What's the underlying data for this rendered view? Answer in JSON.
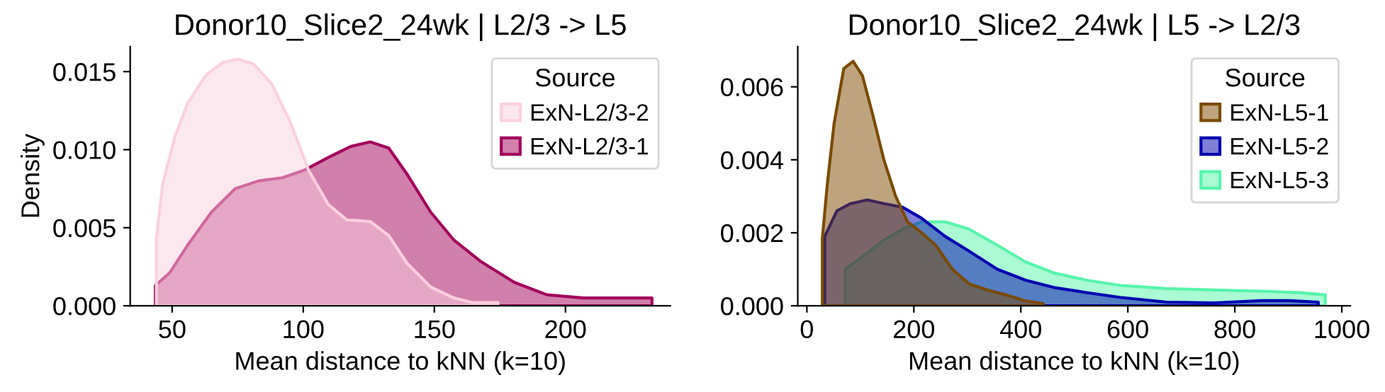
{
  "chart_data": [
    {
      "type": "area",
      "title": "Donor10_Slice2_24wk | L2/3 -> L5",
      "xlabel": "Mean distance to kNN (k=10)",
      "ylabel": "Density",
      "legend_title": "Source",
      "legend": "top right",
      "xlim": [
        34,
        240
      ],
      "xticks": [
        50,
        100,
        150,
        200
      ],
      "ylim": [
        0,
        0.0166
      ],
      "yticks": [
        {
          "value": 0,
          "label": "0.000"
        },
        {
          "value": 0.005,
          "label": "0.005"
        },
        {
          "value": 0.01,
          "label": "0.010"
        },
        {
          "value": 0.015,
          "label": "0.015"
        }
      ],
      "series": [
        {
          "name": "ExN-L2/3-2",
          "color": "#fcd0df",
          "x": [
            44,
            46.4,
            51,
            56,
            63,
            69.5,
            75,
            81,
            88,
            95,
            102,
            109.5,
            116.6,
            125.5,
            132.6,
            139.7,
            148.6,
            157.5,
            164.6,
            174.3
          ],
          "values": [
            0.0043,
            0.0078,
            0.0108,
            0.013,
            0.0148,
            0.0156,
            0.0158,
            0.0155,
            0.0142,
            0.0118,
            0.0087,
            0.0065,
            0.0055,
            0.0054,
            0.0045,
            0.0027,
            0.0012,
            0.0005,
            0.0002,
            0.0002
          ]
        },
        {
          "name": "ExN-L2/3-1",
          "color": "#a3005c",
          "x": [
            43.6,
            49,
            56,
            65,
            74,
            83,
            92,
            100.6,
            109.5,
            118,
            125.5,
            132.6,
            139.7,
            148.6,
            157.5,
            168,
            180.5,
            193,
            207,
            221,
            233
          ],
          "values": [
            0.0013,
            0.0021,
            0.0039,
            0.006,
            0.0075,
            0.008,
            0.0082,
            0.0087,
            0.0095,
            0.0102,
            0.0105,
            0.0101,
            0.0084,
            0.006,
            0.0042,
            0.0028,
            0.0015,
            0.0007,
            0.0005,
            0.0005,
            0.0005
          ]
        }
      ]
    },
    {
      "type": "area",
      "title": "Donor10_Slice2_24wk | L5 -> L2/3",
      "xlabel": "Mean distance to kNN (k=10)",
      "legend_title": "Source",
      "legend": "top right",
      "xlim": [
        -17,
        1016
      ],
      "xticks": [
        0,
        200,
        400,
        600,
        800,
        1000
      ],
      "ylim": [
        0,
        0.0071
      ],
      "yticks": [
        {
          "value": 0,
          "label": "0.000"
        },
        {
          "value": 0.002,
          "label": "0.002"
        },
        {
          "value": 0.004,
          "label": "0.004"
        },
        {
          "value": 0.006,
          "label": "0.006"
        }
      ],
      "series": [
        {
          "name": "ExN-L5-1",
          "color": "#7b4a00",
          "x": [
            29,
            38,
            51,
            69,
            86.5,
            104,
            122,
            144,
            166,
            188,
            214.5,
            241,
            272,
            303,
            338,
            373,
            409,
            442
          ],
          "values": [
            0.00185,
            0.0033,
            0.005,
            0.0065,
            0.0067,
            0.0063,
            0.0053,
            0.004,
            0.003,
            0.0023,
            0.002,
            0.00166,
            0.001,
            0.0006,
            0.00043,
            0.0003,
            0.00013,
            6e-05
          ]
        },
        {
          "name": "ExN-L5-2",
          "color": "#0000b0",
          "x": [
            33.5,
            56,
            82,
            113,
            144,
            179,
            214.5,
            258.6,
            303,
            356,
            409,
            462,
            523,
            585,
            673,
            762,
            850,
            903,
            956
          ],
          "values": [
            0.0019,
            0.0026,
            0.0028,
            0.0029,
            0.0028,
            0.0027,
            0.0024,
            0.0019,
            0.0015,
            0.001,
            0.0007,
            0.0005,
            0.00036,
            0.00023,
            0.0001,
            8e-05,
            0.00014,
            0.00014,
            0.0001
          ]
        },
        {
          "name": "ExN-L5-3",
          "color": "#55f5aa",
          "x": [
            71.5,
            100,
            144,
            179,
            214.5,
            258.6,
            303,
            356,
            409,
            462,
            523,
            585,
            673,
            762,
            850,
            920,
            969
          ],
          "values": [
            0.001,
            0.0013,
            0.0018,
            0.0021,
            0.0023,
            0.0023,
            0.0021,
            0.00166,
            0.0012,
            0.0009,
            0.0007,
            0.00056,
            0.00047,
            0.00043,
            0.0004,
            0.00036,
            0.0003
          ]
        }
      ]
    }
  ]
}
